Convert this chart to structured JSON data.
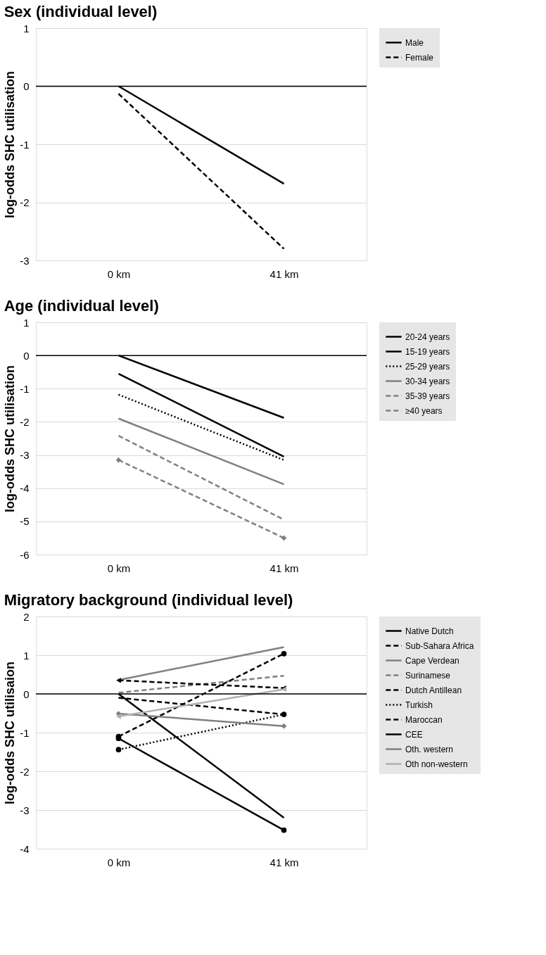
{
  "chart_data": [
    {
      "type": "line",
      "title": "Sex (individual level)",
      "ylabel": "log-odds SHC utilisation",
      "categories": [
        "0 km",
        "41 km"
      ],
      "ylim": [
        -3,
        1
      ],
      "yticks": [
        -3,
        -2,
        -1,
        0,
        1
      ],
      "grid": "y",
      "legend": "top right",
      "ref_lines": [
        {
          "axis": "y",
          "value": 0,
          "color": "#000000"
        }
      ],
      "series": [
        {
          "name": "Male",
          "color": "#000000",
          "line_style": "solid",
          "values": [
            0,
            -1.68
          ]
        },
        {
          "name": "Female",
          "color": "#000000",
          "line_style": "dashed",
          "values": [
            -0.13,
            -2.8
          ]
        }
      ]
    },
    {
      "type": "line",
      "title": "Age (individual level)",
      "ylabel": "log-odds SHC utilisation",
      "categories": [
        "0 km",
        "41 km"
      ],
      "ylim": [
        -6,
        1
      ],
      "yticks": [
        -6,
        -5,
        -4,
        -3,
        -2,
        -1,
        0,
        1
      ],
      "grid": "y",
      "legend": "top right",
      "ref_lines": [
        {
          "axis": "y",
          "value": 0,
          "color": "#000000"
        }
      ],
      "series": [
        {
          "name": "20-24 years",
          "color": "#000000",
          "line_style": "solid",
          "values": [
            0,
            -1.88
          ]
        },
        {
          "name": "15-19 years",
          "color": "#000000",
          "line_style": "solid",
          "values": [
            -0.55,
            -3.05
          ]
        },
        {
          "name": "25-29 years",
          "color": "#000000",
          "line_style": "dotted",
          "values": [
            -1.18,
            -3.15
          ]
        },
        {
          "name": "30-34 years",
          "color": "#808080",
          "line_style": "solid",
          "values": [
            -1.9,
            -3.88
          ]
        },
        {
          "name": "35-39 years",
          "color": "#808080",
          "line_style": "dashed",
          "values": [
            -2.42,
            -4.95
          ]
        },
        {
          "name": "≥40 years",
          "color": "#808080",
          "line_style": "dashed",
          "marker": "diamond",
          "values": [
            -3.15,
            -5.5
          ]
        }
      ]
    },
    {
      "type": "line",
      "title": "Migratory background (individual level)",
      "ylabel": "log-odds SHC utilisaion",
      "categories": [
        "0 km",
        "41 km"
      ],
      "ylim": [
        -4,
        2
      ],
      "yticks": [
        -4,
        -3,
        -2,
        -1,
        0,
        1,
        2
      ],
      "grid": "y",
      "legend": "top right",
      "ref_lines": [
        {
          "axis": "y",
          "value": 0,
          "color": "#000000"
        }
      ],
      "series": [
        {
          "name": "Native Dutch",
          "color": "#000000",
          "line_style": "solid",
          "values": [
            0,
            -3.2
          ]
        },
        {
          "name": "Sub-Sahara Africa",
          "color": "#000000",
          "line_style": "dashed",
          "values": [
            -0.1,
            -0.53
          ]
        },
        {
          "name": "Cape Verdean",
          "color": "#808080",
          "line_style": "solid",
          "values": [
            0.36,
            1.21
          ]
        },
        {
          "name": "Surinamese",
          "color": "#808080",
          "line_style": "dashed",
          "values": [
            0.03,
            0.47
          ]
        },
        {
          "name": "Dutch Antillean",
          "color": "#000000",
          "line_style": "dashed",
          "marker": "triangle",
          "values": [
            0.35,
            0.15
          ]
        },
        {
          "name": "Turkish",
          "color": "#000000",
          "line_style": "dotted",
          "marker": "circle",
          "values": [
            -1.44,
            -0.53
          ]
        },
        {
          "name": "Maroccan",
          "color": "#000000",
          "line_style": "dashed",
          "marker": "circle",
          "values": [
            -1.1,
            1.04
          ]
        },
        {
          "name": "CEE",
          "color": "#000000",
          "line_style": "solid",
          "marker": "circle",
          "values": [
            -1.15,
            -3.52
          ]
        },
        {
          "name": "Oth. western",
          "color": "#808080",
          "line_style": "solid",
          "marker": "diamond",
          "values": [
            -0.51,
            -0.83
          ]
        },
        {
          "name": "Oth non-western",
          "color": "#b0b0b0",
          "line_style": "solid",
          "marker": "triangle",
          "values": [
            -0.58,
            0.12
          ]
        }
      ]
    }
  ]
}
